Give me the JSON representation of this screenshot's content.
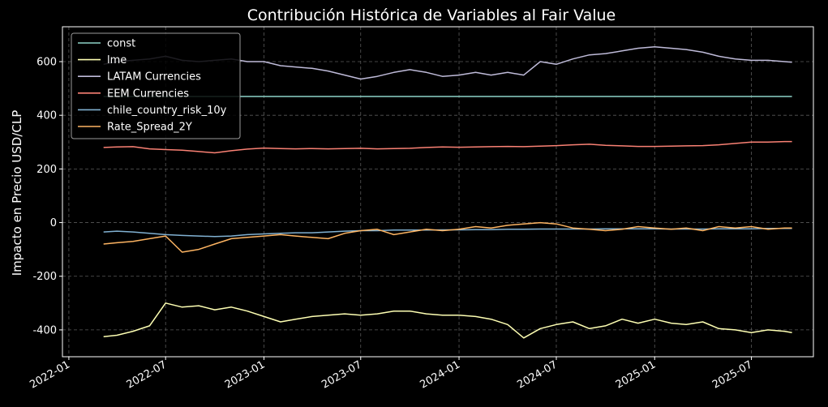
{
  "chart_data": {
    "type": "line",
    "title": "Contribución Histórica de Variables al Fair Value",
    "xlabel": "",
    "ylabel": "Impacto en Precio USD/CLP",
    "x_ticks": [
      "2022-01",
      "2022-07",
      "2023-01",
      "2023-07",
      "2024-01",
      "2024-07",
      "2025-01",
      "2025-07"
    ],
    "y_ticks": [
      -400,
      -200,
      0,
      200,
      400,
      600
    ],
    "xlim": [
      "2021-12-20",
      "2025-10-25"
    ],
    "ylim": [
      -500,
      730
    ],
    "grid": true,
    "legend_position": "top-left",
    "x": [
      "2022-03-07",
      "2022-04-01",
      "2022-05-01",
      "2022-06-01",
      "2022-07-01",
      "2022-08-01",
      "2022-09-01",
      "2022-10-01",
      "2022-11-01",
      "2022-12-01",
      "2023-01-01",
      "2023-02-01",
      "2023-03-01",
      "2023-04-01",
      "2023-05-01",
      "2023-06-01",
      "2023-07-01",
      "2023-08-01",
      "2023-09-01",
      "2023-10-01",
      "2023-11-01",
      "2023-12-01",
      "2024-01-01",
      "2024-02-01",
      "2024-03-01",
      "2024-04-01",
      "2024-05-01",
      "2024-06-01",
      "2024-07-01",
      "2024-08-01",
      "2024-09-01",
      "2024-10-01",
      "2024-11-01",
      "2024-12-01",
      "2025-01-01",
      "2025-02-01",
      "2025-03-01",
      "2025-04-01",
      "2025-05-01",
      "2025-06-01",
      "2025-07-01",
      "2025-08-01",
      "2025-09-01",
      "2025-09-15"
    ],
    "series": [
      {
        "name": "const",
        "color": "#8dd3c7",
        "values": [
          470,
          470,
          470,
          470,
          470,
          470,
          470,
          470,
          470,
          470,
          470,
          470,
          470,
          470,
          470,
          470,
          470,
          470,
          470,
          470,
          470,
          470,
          470,
          470,
          470,
          470,
          470,
          470,
          470,
          470,
          470,
          470,
          470,
          470,
          470,
          470,
          470,
          470,
          470,
          470,
          470,
          470,
          470,
          470
        ]
      },
      {
        "name": "lme",
        "color": "#feffb3",
        "values": [
          -425,
          -420,
          -405,
          -385,
          -300,
          -315,
          -310,
          -325,
          -315,
          -330,
          -350,
          -370,
          -360,
          -350,
          -345,
          -340,
          -345,
          -340,
          -330,
          -330,
          -340,
          -345,
          -345,
          -350,
          -360,
          -380,
          -430,
          -395,
          -380,
          -370,
          -395,
          -385,
          -360,
          -375,
          -360,
          -375,
          -380,
          -370,
          -395,
          -400,
          -410,
          -400,
          -405,
          -410
        ]
      },
      {
        "name": "LATAM Currencies",
        "color": "#bfbbd9",
        "values": [
          590,
          600,
          605,
          610,
          620,
          605,
          600,
          605,
          610,
          600,
          600,
          585,
          580,
          575,
          565,
          550,
          535,
          545,
          560,
          570,
          560,
          545,
          550,
          560,
          550,
          560,
          550,
          600,
          590,
          610,
          625,
          630,
          640,
          650,
          655,
          650,
          645,
          635,
          620,
          610,
          605,
          605,
          600,
          598
        ]
      },
      {
        "name": "EEM Currencies",
        "color": "#fa8174",
        "values": [
          280,
          282,
          283,
          275,
          272,
          270,
          265,
          260,
          268,
          274,
          278,
          276,
          275,
          276,
          275,
          276,
          277,
          275,
          276,
          277,
          280,
          282,
          281,
          282,
          283,
          284,
          283,
          285,
          287,
          290,
          292,
          288,
          286,
          284,
          284,
          285,
          286,
          287,
          290,
          295,
          300,
          300,
          302,
          302
        ]
      },
      {
        "name": "chile_country_risk_10y",
        "color": "#81b1d2",
        "values": [
          -35,
          -32,
          -35,
          -40,
          -45,
          -48,
          -50,
          -52,
          -50,
          -45,
          -42,
          -40,
          -38,
          -38,
          -35,
          -32,
          -30,
          -30,
          -28,
          -28,
          -28,
          -27,
          -27,
          -26,
          -26,
          -25,
          -25,
          -24,
          -24,
          -24,
          -24,
          -23,
          -23,
          -23,
          -23,
          -24,
          -24,
          -24,
          -23,
          -23,
          -23,
          -22,
          -22,
          -22
        ]
      },
      {
        "name": "Rate_Spread_2Y",
        "color": "#fdb462",
        "values": [
          -80,
          -75,
          -70,
          -60,
          -50,
          -110,
          -100,
          -80,
          -60,
          -55,
          -50,
          -45,
          -50,
          -55,
          -60,
          -40,
          -30,
          -25,
          -45,
          -35,
          -25,
          -30,
          -25,
          -15,
          -20,
          -10,
          -5,
          0,
          -5,
          -20,
          -25,
          -30,
          -25,
          -15,
          -20,
          -25,
          -20,
          -30,
          -15,
          -20,
          -15,
          -25,
          -20,
          -20
        ]
      }
    ]
  }
}
